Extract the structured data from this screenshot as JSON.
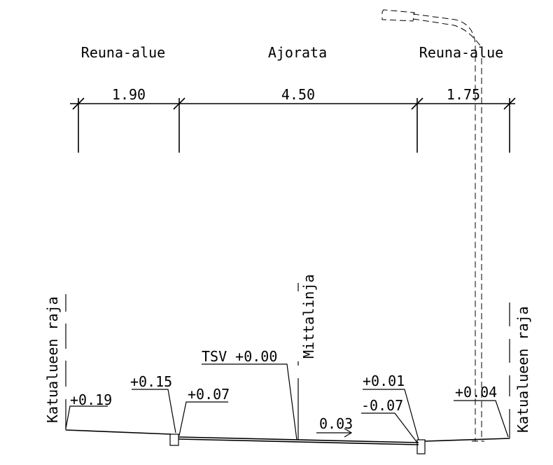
{
  "zones": {
    "left": "Reuna-alue",
    "middle": "Ajorata",
    "right": "Reuna-alue"
  },
  "dimensions": {
    "left": "1.90",
    "middle": "4.50",
    "right": "1.75"
  },
  "labels": {
    "boundary_left": "Katualueen raja",
    "boundary_right": "Katualueen raja",
    "survey_line": "Mittalinja"
  },
  "elevations": {
    "left_edge": "+0.19",
    "left_curb_top": "+0.15",
    "left_curb_bottom": "+0.07",
    "tsv": "TSV +0.00",
    "right_curb_top": "+0.01",
    "right_curb_bottom": "-0.07",
    "right_edge": "+0.04"
  },
  "slope": "0.03"
}
